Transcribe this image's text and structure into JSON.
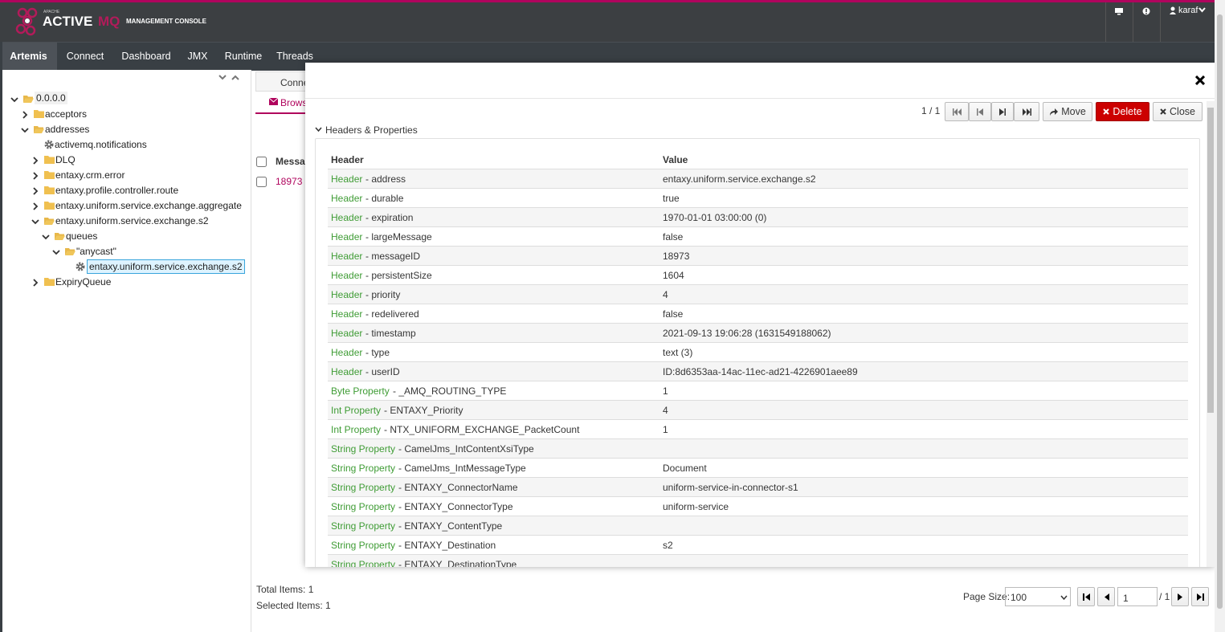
{
  "header": {
    "logo_small": "APACHE",
    "logo_main": "ACTIVE",
    "logo_accent": "MQ",
    "logo_subtitle": "MANAGEMENT CONSOLE",
    "user": "karaf"
  },
  "nav": [
    "Artemis",
    "Connect",
    "Dashboard",
    "JMX",
    "Runtime",
    "Threads"
  ],
  "tree": [
    {
      "label": "0.0.0.0",
      "depth": 0,
      "icon": "folder-open",
      "expanded": true
    },
    {
      "label": "acceptors",
      "depth": 1,
      "icon": "folder",
      "expanded": false
    },
    {
      "label": "addresses",
      "depth": 1,
      "icon": "folder-open",
      "expanded": true
    },
    {
      "label": "activemq.notifications",
      "depth": 2,
      "icon": "gear"
    },
    {
      "label": "DLQ",
      "depth": 2,
      "icon": "folder",
      "expanded": false
    },
    {
      "label": "entaxy.crm.error",
      "depth": 2,
      "icon": "folder",
      "expanded": false
    },
    {
      "label": "entaxy.profile.controller.route",
      "depth": 2,
      "icon": "folder",
      "expanded": false
    },
    {
      "label": "entaxy.uniform.service.exchange.aggregate",
      "depth": 2,
      "icon": "folder",
      "expanded": false
    },
    {
      "label": "entaxy.uniform.service.exchange.s2",
      "depth": 2,
      "icon": "folder-open",
      "expanded": true
    },
    {
      "label": "queues",
      "depth": 3,
      "icon": "folder-open",
      "expanded": true
    },
    {
      "label": "\"anycast\"",
      "depth": 4,
      "icon": "folder-open",
      "expanded": true
    },
    {
      "label": "entaxy.uniform.service.exchange.s2",
      "depth": 5,
      "icon": "gear",
      "selected": true
    },
    {
      "label": "ExpiryQueue",
      "depth": 2,
      "icon": "folder",
      "expanded": false
    }
  ],
  "background": {
    "tabs": [
      "Connections",
      "Browse"
    ],
    "column": "Message ID",
    "row_id": "18973",
    "total": "Total Items: 1",
    "selected": "Selected Items: 1",
    "page_size_label": "Page Size:",
    "page_size": "100",
    "page": "1",
    "page_count": "/ 1"
  },
  "modal": {
    "pager": "1 / 1",
    "buttons": [
      "Move",
      "Delete",
      "Close"
    ],
    "section": "Headers & Properties",
    "columns": [
      "Header",
      "Value"
    ],
    "rows": [
      {
        "kind": "Header",
        "name": "- address",
        "value": "entaxy.uniform.service.exchange.s2"
      },
      {
        "kind": "Header",
        "name": "- durable",
        "value": "true"
      },
      {
        "kind": "Header",
        "name": "- expiration",
        "value": "1970-01-01 03:00:00 (0)"
      },
      {
        "kind": "Header",
        "name": "- largeMessage",
        "value": "false"
      },
      {
        "kind": "Header",
        "name": "- messageID",
        "value": "18973"
      },
      {
        "kind": "Header",
        "name": "- persistentSize",
        "value": "1604"
      },
      {
        "kind": "Header",
        "name": "- priority",
        "value": "4"
      },
      {
        "kind": "Header",
        "name": "- redelivered",
        "value": "false"
      },
      {
        "kind": "Header",
        "name": "- timestamp",
        "value": "2021-09-13 19:06:28 (1631549188062)"
      },
      {
        "kind": "Header",
        "name": "- type",
        "value": "text (3)"
      },
      {
        "kind": "Header",
        "name": "- userID",
        "value": "ID:8d6353aa-14ac-11ec-ad21-4226901aee89"
      },
      {
        "kind": "Byte Property",
        "name": "- _AMQ_ROUTING_TYPE",
        "value": "1"
      },
      {
        "kind": "Int Property",
        "name": "- ENTAXY_Priority",
        "value": "4"
      },
      {
        "kind": "Int Property",
        "name": "- NTX_UNIFORM_EXCHANGE_PacketCount",
        "value": "1"
      },
      {
        "kind": "String Property",
        "name": "- CamelJms_IntContentXsiType"
      },
      {
        "kind": "String Property",
        "name": "- CamelJms_IntMessageType",
        "value": "Document"
      },
      {
        "kind": "String Property",
        "name": "- ENTAXY_ConnectorName",
        "value": "uniform-service-in-connector-s1"
      },
      {
        "kind": "String Property",
        "name": "- ENTAXY_ConnectorType",
        "value": "uniform-service"
      },
      {
        "kind": "String Property",
        "name": "- ENTAXY_ContentType"
      },
      {
        "kind": "String Property",
        "name": "- ENTAXY_Destination",
        "value": "s2"
      },
      {
        "kind": "String Property",
        "name": "- ENTAXY_DestinationType"
      }
    ]
  }
}
